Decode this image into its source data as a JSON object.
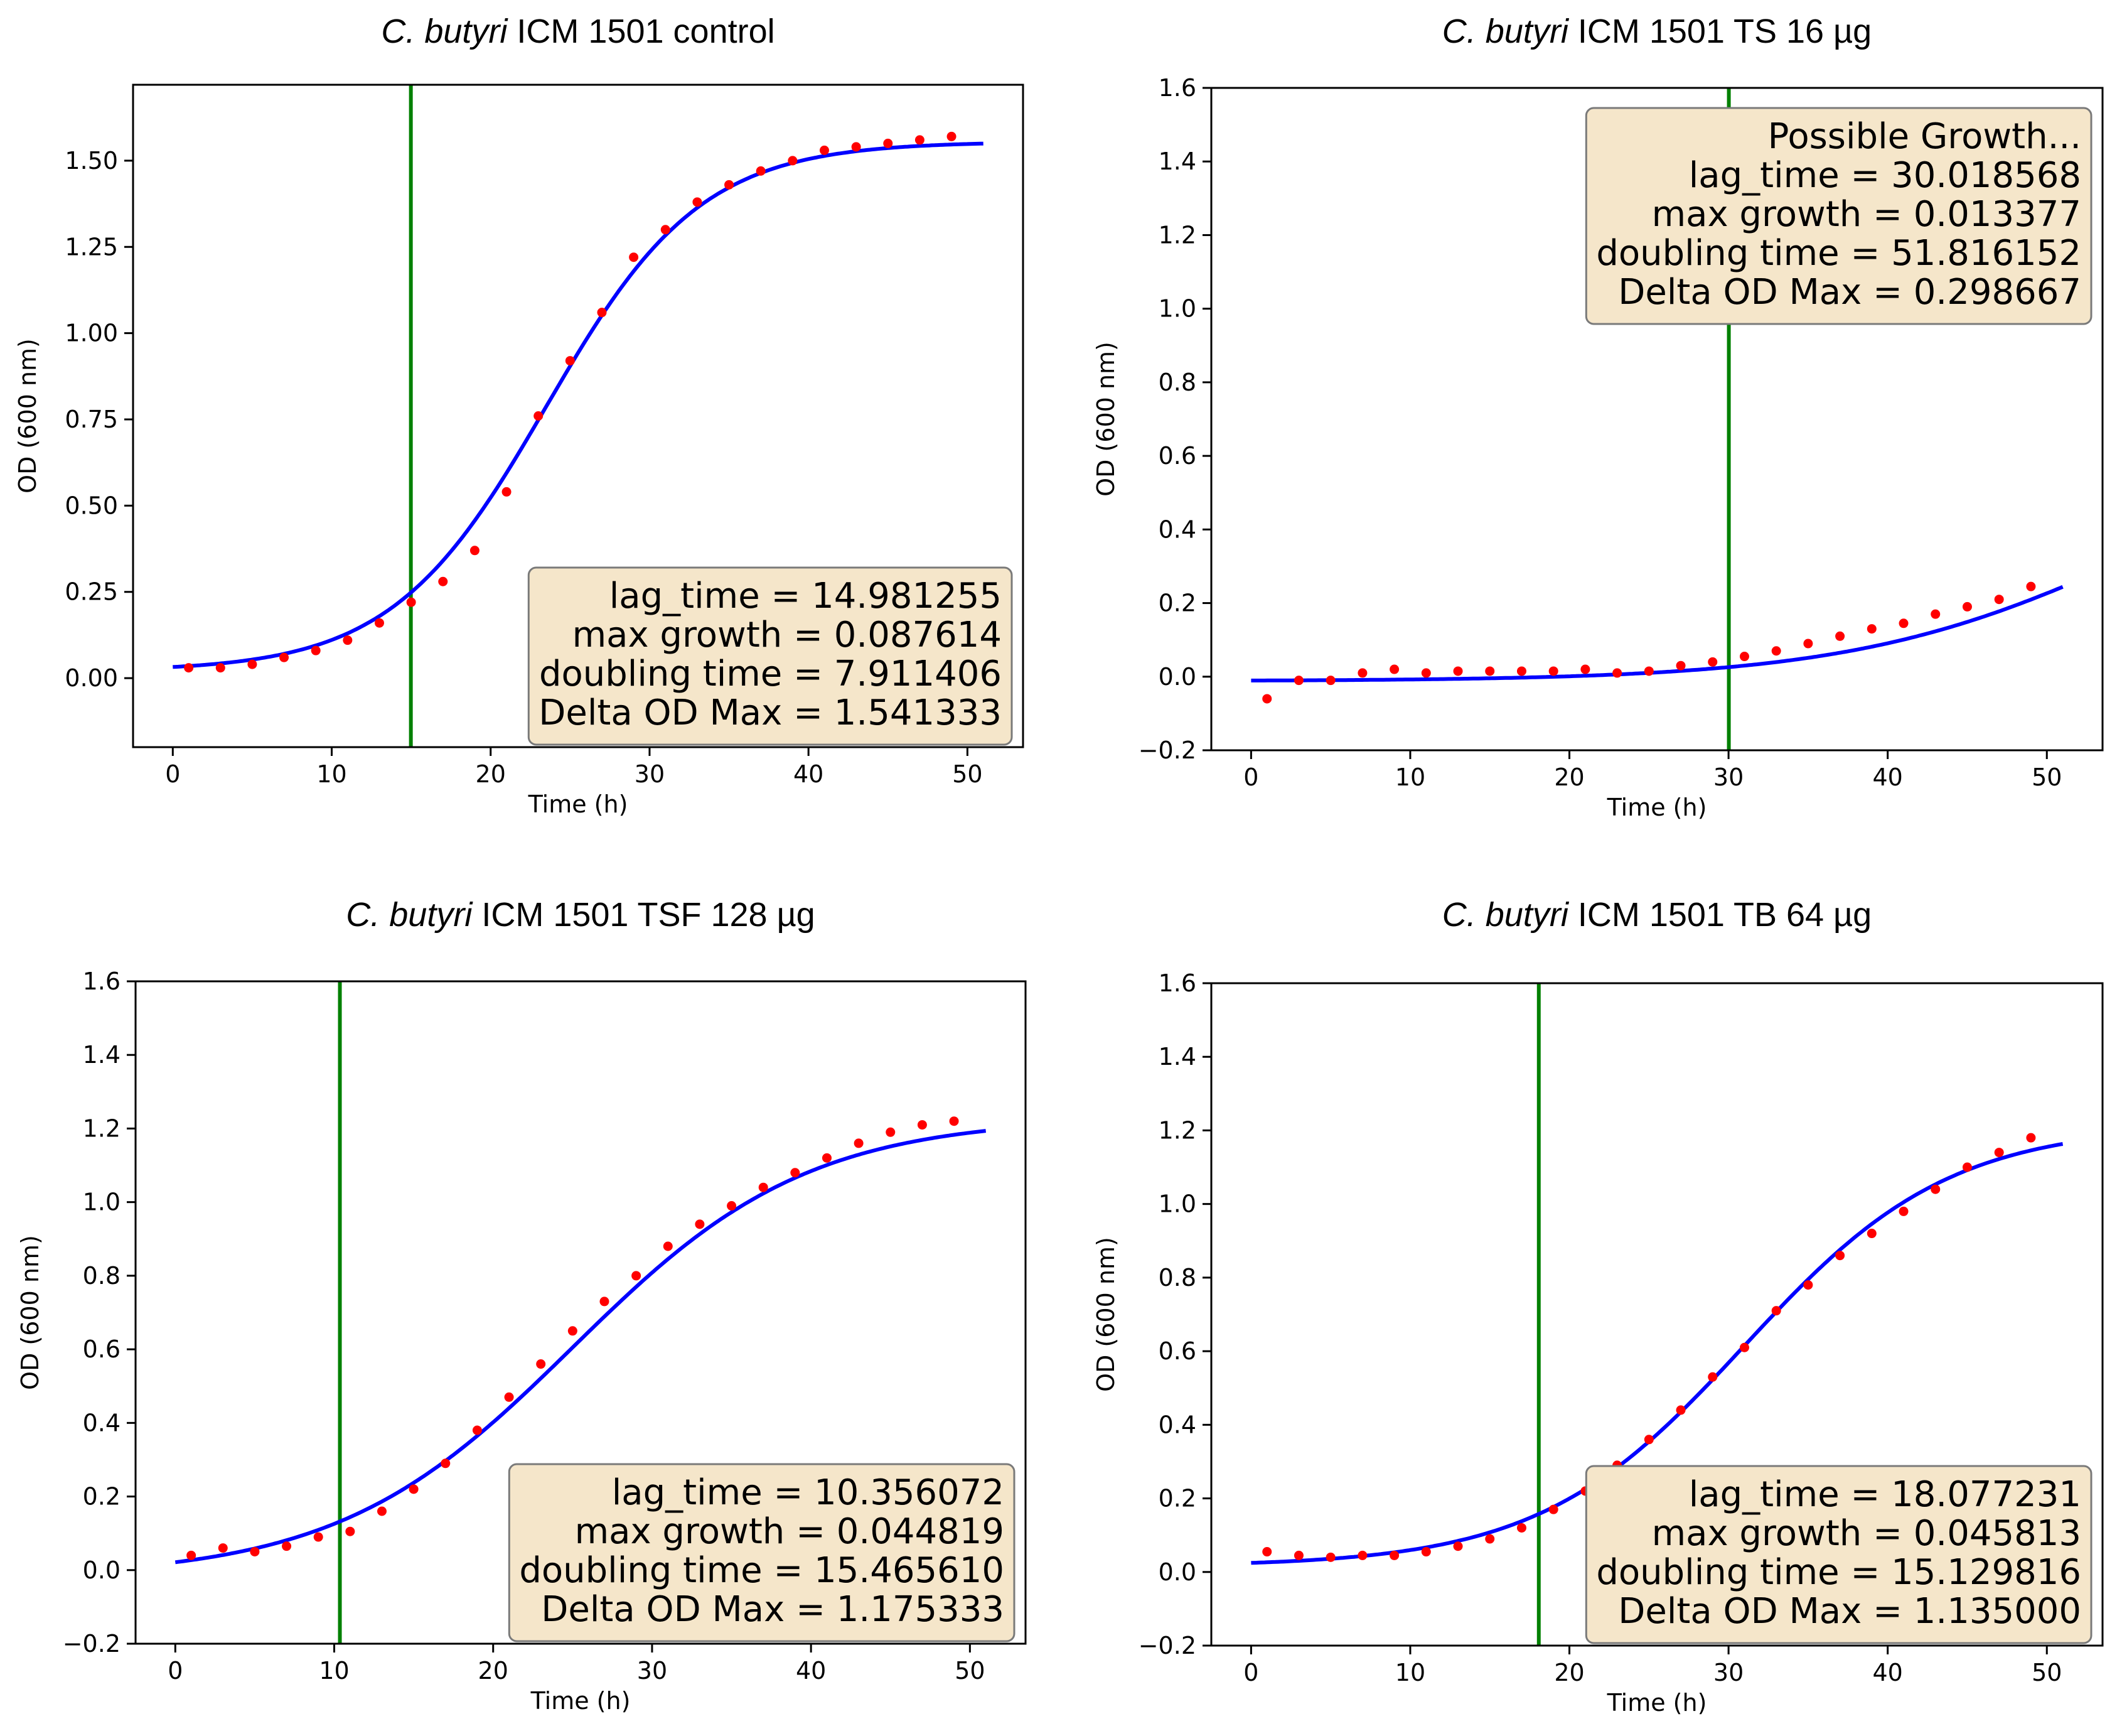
{
  "chart_data": [
    {
      "type": "scatter",
      "title": {
        "italic": "C. butyri",
        "rest": " ICM 1501 control"
      },
      "xlabel": "Time (h)",
      "ylabel": "OD (600 nm)",
      "xlim": [
        -2.5,
        53.5
      ],
      "ylim": [
        -0.2,
        1.72
      ],
      "xticks": [
        0,
        10,
        20,
        30,
        40,
        50
      ],
      "xtick_labels": [
        "0",
        "10",
        "20",
        "30",
        "40",
        "50"
      ],
      "yticks": [
        0.0,
        0.25,
        0.5,
        0.75,
        1.0,
        1.25,
        1.5
      ],
      "ytick_labels": [
        "0.00",
        "0.25",
        "0.50",
        "0.75",
        "1.00",
        "1.25",
        "1.50"
      ],
      "lag_line_x": 14.981255,
      "fit": {
        "A": 0.02,
        "K": 1.535,
        "rate": 0.205,
        "mid": 23.5,
        "x_end": 51
      },
      "points": {
        "x": [
          1,
          3,
          5,
          7,
          9,
          11,
          13,
          15,
          17,
          19,
          21,
          23,
          25,
          27,
          29,
          31,
          33,
          35,
          37,
          39,
          41,
          43,
          45,
          47,
          49
        ],
        "y": [
          0.03,
          0.03,
          0.04,
          0.06,
          0.08,
          0.11,
          0.16,
          0.22,
          0.28,
          0.37,
          0.54,
          0.76,
          0.92,
          1.06,
          1.22,
          1.3,
          1.38,
          1.43,
          1.47,
          1.5,
          1.53,
          1.54,
          1.55,
          1.56,
          1.57
        ]
      },
      "annotation": {
        "position": "bottom-right",
        "lines": [
          "lag_time = 14.981255",
          "max growth = 0.087614",
          "doubling time = 7.911406",
          "Delta OD Max = 1.541333"
        ]
      }
    },
    {
      "type": "scatter",
      "title": {
        "italic": "C. butyri",
        "rest": " ICM 1501 TS 16 µg"
      },
      "xlabel": "Time (h)",
      "ylabel": "OD (600 nm)",
      "xlim": [
        -2.5,
        53.5
      ],
      "ylim": [
        -0.2,
        1.6
      ],
      "xticks": [
        0,
        10,
        20,
        30,
        40,
        50
      ],
      "xtick_labels": [
        "0",
        "10",
        "20",
        "30",
        "40",
        "50"
      ],
      "yticks": [
        -0.2,
        0.0,
        0.2,
        0.4,
        0.6,
        0.8,
        1.0,
        1.2,
        1.4,
        1.6
      ],
      "ytick_labels": [
        "−0.2",
        "0.0",
        "0.2",
        "0.4",
        "0.6",
        "0.8",
        "1.0",
        "1.2",
        "1.4",
        "1.6"
      ],
      "lag_line_x": 30.018568,
      "fit": {
        "A": -0.012,
        "K": 0.7,
        "rate": 0.11,
        "mid": 56,
        "x_end": 51
      },
      "points": {
        "x": [
          1,
          3,
          5,
          7,
          9,
          11,
          13,
          15,
          17,
          19,
          21,
          23,
          25,
          27,
          29,
          31,
          33,
          35,
          37,
          39,
          41,
          43,
          45,
          47,
          49
        ],
        "y": [
          -0.06,
          -0.01,
          -0.01,
          0.01,
          0.02,
          0.01,
          0.015,
          0.015,
          0.015,
          0.015,
          0.02,
          0.01,
          0.015,
          0.03,
          0.04,
          0.055,
          0.07,
          0.09,
          0.11,
          0.13,
          0.145,
          0.17,
          0.19,
          0.21,
          0.245
        ]
      },
      "annotation": {
        "position": "top-right",
        "lines": [
          "Possible Growth...",
          "lag_time = 30.018568",
          "max growth = 0.013377",
          "doubling time = 51.816152",
          "Delta OD Max = 0.298667"
        ]
      }
    },
    {
      "type": "scatter",
      "title": {
        "italic": "C. butyri",
        "rest": " ICM 1501 TSF 128 µg"
      },
      "xlabel": "Time (h)",
      "ylabel": "OD (600 nm)",
      "xlim": [
        -2.5,
        53.5
      ],
      "ylim": [
        -0.2,
        1.6
      ],
      "xticks": [
        0,
        10,
        20,
        30,
        40,
        50
      ],
      "xtick_labels": [
        "0",
        "10",
        "20",
        "30",
        "40",
        "50"
      ],
      "yticks": [
        -0.2,
        0.0,
        0.2,
        0.4,
        0.6,
        0.8,
        1.0,
        1.2,
        1.4,
        1.6
      ],
      "ytick_labels": [
        "−0.2",
        "0.0",
        "0.2",
        "0.4",
        "0.6",
        "0.8",
        "1.0",
        "1.2",
        "1.4",
        "1.6"
      ],
      "lag_line_x": 10.356072,
      "fit": {
        "A": -0.02,
        "K": 1.25,
        "rate": 0.135,
        "mid": 25,
        "x_end": 51
      },
      "points": {
        "x": [
          1,
          3,
          5,
          7,
          9,
          11,
          13,
          15,
          17,
          19,
          21,
          23,
          25,
          27,
          29,
          31,
          33,
          35,
          37,
          39,
          41,
          43,
          45,
          47,
          49
        ],
        "y": [
          0.04,
          0.06,
          0.05,
          0.065,
          0.09,
          0.105,
          0.16,
          0.22,
          0.29,
          0.38,
          0.47,
          0.56,
          0.65,
          0.73,
          0.8,
          0.88,
          0.94,
          0.99,
          1.04,
          1.08,
          1.12,
          1.16,
          1.19,
          1.21,
          1.22
        ]
      },
      "annotation": {
        "position": "bottom-right",
        "lines": [
          "lag_time = 10.356072",
          "max growth = 0.044819",
          "doubling time = 15.465610",
          "Delta OD Max = 1.175333"
        ]
      }
    },
    {
      "type": "scatter",
      "title": {
        "italic": "C. butyri",
        "rest": " ICM 1501 TB 64 µg"
      },
      "xlabel": "Time (h)",
      "ylabel": "OD (600 nm)",
      "xlim": [
        -2.5,
        53.5
      ],
      "ylim": [
        -0.2,
        1.6
      ],
      "xticks": [
        0,
        10,
        20,
        30,
        40,
        50
      ],
      "xtick_labels": [
        "0",
        "10",
        "20",
        "30",
        "40",
        "50"
      ],
      "yticks": [
        -0.2,
        0.0,
        0.2,
        0.4,
        0.6,
        0.8,
        1.0,
        1.2,
        1.4,
        1.6
      ],
      "ytick_labels": [
        "−0.2",
        "0.0",
        "0.2",
        "0.4",
        "0.6",
        "0.8",
        "1.0",
        "1.2",
        "1.4",
        "1.6"
      ],
      "lag_line_x": 18.077231,
      "fit": {
        "A": 0.015,
        "K": 1.2,
        "rate": 0.155,
        "mid": 31,
        "x_end": 51
      },
      "points": {
        "x": [
          1,
          3,
          5,
          7,
          9,
          11,
          13,
          15,
          17,
          19,
          21,
          23,
          25,
          27,
          29,
          31,
          33,
          35,
          37,
          39,
          41,
          43,
          45,
          47,
          49
        ],
        "y": [
          0.055,
          0.045,
          0.04,
          0.045,
          0.045,
          0.055,
          0.07,
          0.09,
          0.12,
          0.17,
          0.22,
          0.29,
          0.36,
          0.44,
          0.53,
          0.61,
          0.71,
          0.78,
          0.86,
          0.92,
          0.98,
          1.04,
          1.1,
          1.14,
          1.18
        ]
      },
      "annotation": {
        "position": "bottom-right",
        "lines": [
          "lag_time = 18.077231",
          "max growth = 0.045813",
          "doubling time = 15.129816",
          "Delta OD Max = 1.135000"
        ]
      }
    }
  ],
  "colors": {
    "fit": "#0000ff",
    "points": "#ff0000",
    "lag": "#008000",
    "box_fill": "#f5e6ca",
    "box_edge": "#7a7a7a"
  }
}
